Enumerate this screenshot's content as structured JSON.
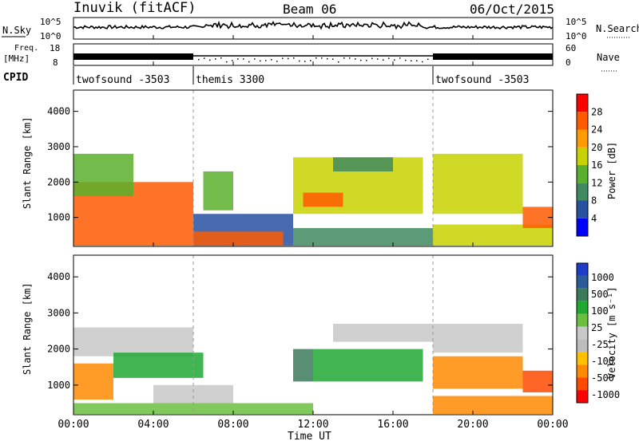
{
  "header": {
    "station": "Inuvik (fitACF)",
    "beam": "Beam 06",
    "date": "06/Oct/2015"
  },
  "strip_panels": {
    "nsky_label": "N.Sky",
    "nsky_ticks": [
      "10^5",
      "10^0"
    ],
    "nsearch_label": "N.Search",
    "nsearch_ticks": [
      "10^5",
      "10^0"
    ],
    "freq_label_line1": "Freq.",
    "freq_label_line2": "[MHz]",
    "freq_ticks": [
      "18",
      "8"
    ],
    "nave_label": "Nave",
    "nave_ticks": [
      "60",
      "0"
    ],
    "cpid_label": "CPID",
    "cpid_segments": [
      {
        "name": "twofsound -3503",
        "start_hour": 0
      },
      {
        "name": "themis 3300",
        "start_hour": 6
      },
      {
        "name": "twofsound -3503",
        "start_hour": 18
      }
    ]
  },
  "time_axis": {
    "title": "Time UT",
    "ticks": [
      "00:00",
      "04:00",
      "08:00",
      "12:00",
      "16:00",
      "20:00",
      "00:00"
    ]
  },
  "colors": {
    "power": [
      "#0000ff",
      "#2850a0",
      "#408a60",
      "#5ab02c",
      "#c8d200",
      "#ff9a00",
      "#ff5a00",
      "#ff0000"
    ],
    "velocity": [
      "#ff0000",
      "#ff4a00",
      "#ff8a00",
      "#ffc000",
      "#bdbdbd",
      "#c8c8c8",
      "#6bbf40",
      "#1fa832",
      "#3c7a5c",
      "#2a5c9a",
      "#1e3cc8"
    ]
  },
  "chart_data": [
    {
      "type": "heatmap",
      "name": "power-panel",
      "ylabel": "Slant Range [km]",
      "xlabel": "Time UT",
      "xlim": [
        0,
        24
      ],
      "ylim": [
        180,
        4600
      ],
      "yticks": [
        1000,
        2000,
        3000,
        4000
      ],
      "colorbar": {
        "label": "Power [dB]",
        "range": [
          0,
          32
        ],
        "tick_labels": [
          "28",
          "24",
          "20",
          "16",
          "12",
          "8",
          "4"
        ]
      },
      "regions": [
        {
          "t0": 0.0,
          "t1": 6.0,
          "r0": 200,
          "r1": 2000,
          "value": 26
        },
        {
          "t0": 0.0,
          "t1": 3.0,
          "r0": 1600,
          "r1": 2800,
          "value": 13
        },
        {
          "t0": 6.0,
          "t1": 11.0,
          "r0": 200,
          "r1": 1100,
          "value": 7
        },
        {
          "t0": 6.0,
          "t1": 10.5,
          "r0": 200,
          "r1": 600,
          "value": 26
        },
        {
          "t0": 6.5,
          "t1": 8.0,
          "r0": 1200,
          "r1": 2300,
          "value": 12
        },
        {
          "t0": 11.0,
          "t1": 17.5,
          "r0": 1100,
          "r1": 2700,
          "value": 18
        },
        {
          "t0": 11.5,
          "t1": 13.5,
          "r0": 1300,
          "r1": 1700,
          "value": 24
        },
        {
          "t0": 13.0,
          "t1": 16.0,
          "r0": 2300,
          "r1": 2700,
          "value": 10
        },
        {
          "t0": 11.0,
          "t1": 18.0,
          "r0": 200,
          "r1": 700,
          "value": 10
        },
        {
          "t0": 18.0,
          "t1": 22.5,
          "r0": 1100,
          "r1": 2800,
          "value": 17
        },
        {
          "t0": 18.0,
          "t1": 24.0,
          "r0": 200,
          "r1": 800,
          "value": 16
        },
        {
          "t0": 22.5,
          "t1": 24.0,
          "r0": 700,
          "r1": 1300,
          "value": 26
        }
      ]
    },
    {
      "type": "heatmap",
      "name": "velocity-panel",
      "ylabel": "Slant Range [km]",
      "xlabel": "Time UT",
      "xlim": [
        0,
        24
      ],
      "ylim": [
        180,
        4600
      ],
      "yticks": [
        1000,
        2000,
        3000,
        4000
      ],
      "colorbar": {
        "label": "Velocity [m s⁻¹]",
        "tick_labels": [
          "1000",
          "500",
          "100",
          "25",
          "-25",
          "-100",
          "-500",
          "-1000"
        ]
      },
      "regions": [
        {
          "t0": 0.0,
          "t1": 2.0,
          "r0": 600,
          "r1": 1600,
          "value": -200
        },
        {
          "t0": 0.0,
          "t1": 6.0,
          "r0": 1800,
          "r1": 2600,
          "value": 0
        },
        {
          "t0": 2.0,
          "t1": 6.5,
          "r0": 1200,
          "r1": 1900,
          "value": 120
        },
        {
          "t0": 0.0,
          "t1": 12.0,
          "r0": 200,
          "r1": 500,
          "value": 70
        },
        {
          "t0": 4.0,
          "t1": 8.0,
          "r0": 500,
          "r1": 1000,
          "value": 0
        },
        {
          "t0": 11.0,
          "t1": 12.0,
          "r0": 1100,
          "r1": 2000,
          "value": 900
        },
        {
          "t0": 12.0,
          "t1": 17.5,
          "r0": 1100,
          "r1": 2000,
          "value": 150
        },
        {
          "t0": 13.0,
          "t1": 18.0,
          "r0": 2200,
          "r1": 2700,
          "value": 0
        },
        {
          "t0": 18.0,
          "t1": 22.5,
          "r0": 900,
          "r1": 1800,
          "value": -300
        },
        {
          "t0": 18.0,
          "t1": 22.5,
          "r0": 1900,
          "r1": 2700,
          "value": 0
        },
        {
          "t0": 18.0,
          "t1": 24.0,
          "r0": 200,
          "r1": 700,
          "value": -150
        },
        {
          "t0": 22.5,
          "t1": 24.0,
          "r0": 800,
          "r1": 1400,
          "value": -600
        }
      ]
    }
  ]
}
